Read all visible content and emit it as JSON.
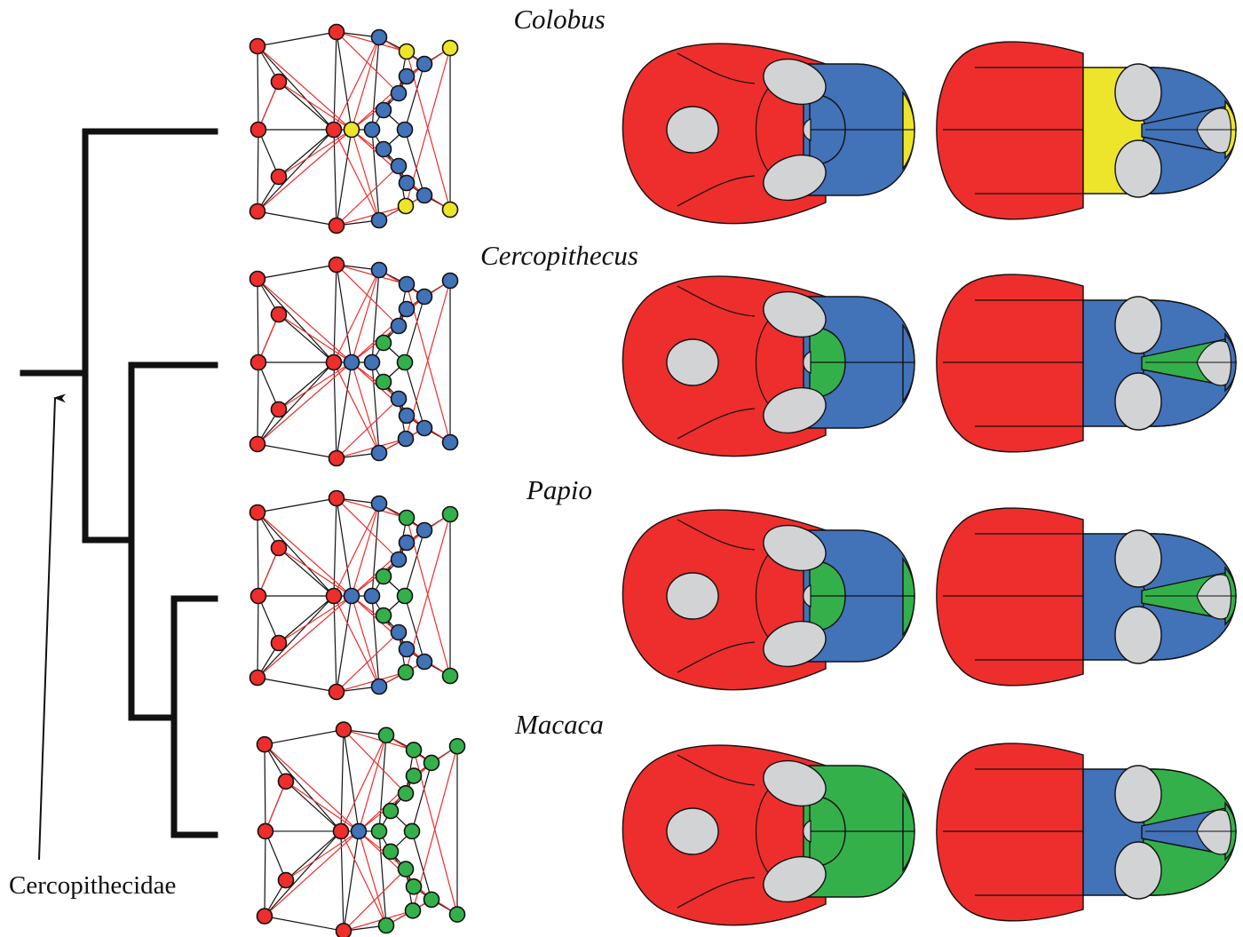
{
  "colors": {
    "red": "#ee2e2c",
    "blue": "#4272b8",
    "yellow": "#ede52a",
    "green": "#34b04b",
    "grey": "#d2d3d5",
    "outline": "#111111",
    "red_edge": "#ee2e2c"
  },
  "clade_label": "Cercopithecidae",
  "taxa": [
    {
      "name": "Colobus",
      "graph_node_colors": {
        "cranial_vault": "red",
        "midface": "yellow",
        "face_inner": "blue",
        "face_outer": "yellow",
        "face_center": "blue"
      },
      "view1_colors": {
        "vault": "red",
        "face": "blue",
        "inner_arc": "blue",
        "tip": "yellow"
      },
      "view2_colors": {
        "vault": "red",
        "palate": "yellow",
        "face": "blue",
        "tip_wedge": "blue",
        "rim": "yellow"
      }
    },
    {
      "name": "Cercopithecus",
      "graph_node_colors": {
        "cranial_vault": "red",
        "midface": "blue",
        "face_inner": "blue",
        "face_outer": "blue",
        "face_center": "green"
      },
      "view1_colors": {
        "vault": "red",
        "face": "blue",
        "inner_arc": "green",
        "tip": "blue"
      },
      "view2_colors": {
        "vault": "red",
        "palate": "blue",
        "face": "blue",
        "tip_wedge": "green",
        "rim": "blue"
      }
    },
    {
      "name": "Papio",
      "graph_node_colors": {
        "cranial_vault": "red",
        "midface": "blue",
        "face_inner": "blue",
        "face_outer": "green",
        "face_center": "green"
      },
      "view1_colors": {
        "vault": "red",
        "face": "blue",
        "inner_arc": "green",
        "tip": "green"
      },
      "view2_colors": {
        "vault": "red",
        "palate": "blue",
        "face": "blue",
        "tip_wedge": "green",
        "rim": "green"
      }
    },
    {
      "name": "Macaca",
      "graph_node_colors": {
        "cranial_vault": "red",
        "midface": "blue",
        "face_inner": "green",
        "face_outer": "green",
        "face_center": "green"
      },
      "view1_colors": {
        "vault": "red",
        "face": "green",
        "inner_arc": "green",
        "tip": "green"
      },
      "view2_colors": {
        "vault": "red",
        "palate": "blue",
        "face": "green",
        "tip_wedge": "blue",
        "rim": "green"
      }
    }
  ]
}
